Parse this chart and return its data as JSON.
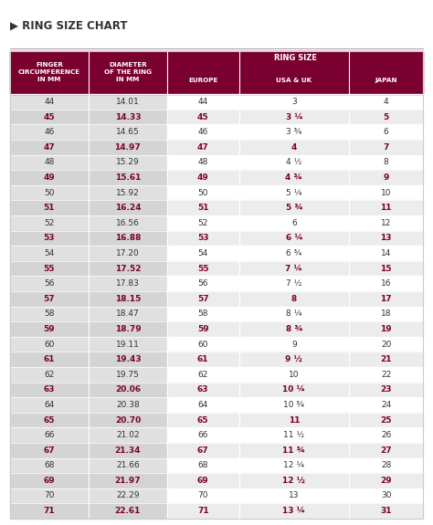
{
  "title": "▶ RING SIZE CHART",
  "header_bg": "#7a0030",
  "header_text_color": "#ffffff",
  "subheader_bg": "#8b0035",
  "col1_header": "FINGER\nCIRCUMFERENCE\nIN MM",
  "col2_header": "DIAMETER\nOF THE RING\nIN MM",
  "col3_header": "EUROPE",
  "col4_header": "USA & UK",
  "col5_header": "JAPAN",
  "ring_size_label": "RING SIZE",
  "row_bg_odd": "#f0f0f0",
  "row_bg_even": "#ffffff",
  "bold_col1_bg_odd": "#d0d0d0",
  "bold_col1_bg_even": "#e8e8e8",
  "rows": [
    [
      "44",
      "14.01",
      "44",
      "3",
      "4"
    ],
    [
      "45",
      "14.33",
      "45",
      "3 ¼",
      "5"
    ],
    [
      "46",
      "14.65",
      "46",
      "3 ¾",
      "6"
    ],
    [
      "47",
      "14.97",
      "47",
      "4",
      "7"
    ],
    [
      "48",
      "15.29",
      "48",
      "4 ½",
      "8"
    ],
    [
      "49",
      "15.61",
      "49",
      "4 ¾",
      "9"
    ],
    [
      "50",
      "15.92",
      "50",
      "5 ¼",
      "10"
    ],
    [
      "51",
      "16.24",
      "51",
      "5 ¾",
      "11"
    ],
    [
      "52",
      "16.56",
      "52",
      "6",
      "12"
    ],
    [
      "53",
      "16.88",
      "53",
      "6 ¼",
      "13"
    ],
    [
      "54",
      "17.20",
      "54",
      "6 ¾",
      "14"
    ],
    [
      "55",
      "17.52",
      "55",
      "7 ¼",
      "15"
    ],
    [
      "56",
      "17.83",
      "56",
      "7 ½",
      "16"
    ],
    [
      "57",
      "18.15",
      "57",
      "8",
      "17"
    ],
    [
      "58",
      "18.47",
      "58",
      "8 ¼",
      "18"
    ],
    [
      "59",
      "18.79",
      "59",
      "8 ¾",
      "19"
    ],
    [
      "60",
      "19.11",
      "60",
      "9",
      "20"
    ],
    [
      "61",
      "19.43",
      "61",
      "9 ½",
      "21"
    ],
    [
      "62",
      "19.75",
      "62",
      "10",
      "22"
    ],
    [
      "63",
      "20.06",
      "63",
      "10 ¼",
      "23"
    ],
    [
      "64",
      "20.38",
      "64",
      "10 ¾",
      "24"
    ],
    [
      "65",
      "20.70",
      "65",
      "11",
      "25"
    ],
    [
      "66",
      "21.02",
      "66",
      "11 ½",
      "26"
    ],
    [
      "67",
      "21.34",
      "67",
      "11 ¾",
      "27"
    ],
    [
      "68",
      "21.66",
      "68",
      "12 ¼",
      "28"
    ],
    [
      "69",
      "21.97",
      "69",
      "12 ½",
      "29"
    ],
    [
      "70",
      "22.29",
      "70",
      "13",
      "30"
    ],
    [
      "71",
      "22.61",
      "71",
      "13 ¼",
      "31"
    ]
  ],
  "bold_rows": [
    1,
    3,
    5,
    7,
    9,
    11,
    13,
    15,
    17,
    19,
    21,
    23,
    25,
    27
  ],
  "figsize": [
    4.74,
    5.75
  ],
  "dpi": 100
}
